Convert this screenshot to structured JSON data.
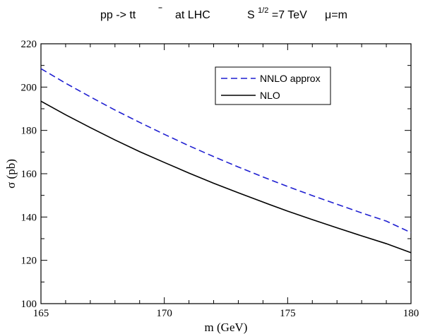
{
  "chart_data": {
    "type": "line",
    "title": {
      "process": "pp -> tt",
      "where": "at  LHC",
      "energy_prefix": "S",
      "energy_exponent": "1/2",
      "energy_value": "=7 TeV",
      "scale": "μ=m"
    },
    "xlabel": "m (GeV)",
    "ylabel": "σ (pb)",
    "xlim": [
      165,
      180
    ],
    "ylim": [
      100,
      220
    ],
    "x_ticks": [
      "165",
      "170",
      "175",
      "180"
    ],
    "y_ticks": [
      "100",
      "120",
      "140",
      "160",
      "180",
      "200",
      "220"
    ],
    "grid": false,
    "legend_position": "top-right",
    "series": [
      {
        "name": "NNLO approx",
        "color": "#1f1fd1",
        "dash": "dashed",
        "x": [
          165,
          166,
          167,
          168,
          169,
          170,
          171,
          172,
          173,
          174,
          175,
          176,
          177,
          178,
          179,
          180
        ],
        "y": [
          208.5,
          201.8,
          195.5,
          189.4,
          183.7,
          178.2,
          172.9,
          167.9,
          163.1,
          158.5,
          154.1,
          149.9,
          145.9,
          141.9,
          138.1,
          132.8
        ]
      },
      {
        "name": "NLO",
        "color": "#000000",
        "dash": "solid",
        "x": [
          165,
          166,
          167,
          168,
          169,
          170,
          171,
          172,
          173,
          174,
          175,
          176,
          177,
          178,
          179,
          180
        ],
        "y": [
          193.5,
          187.2,
          181.3,
          175.6,
          170.2,
          165.2,
          160.3,
          155.6,
          151.2,
          146.9,
          142.7,
          138.8,
          135.0,
          131.3,
          127.7,
          123.5
        ]
      }
    ]
  }
}
